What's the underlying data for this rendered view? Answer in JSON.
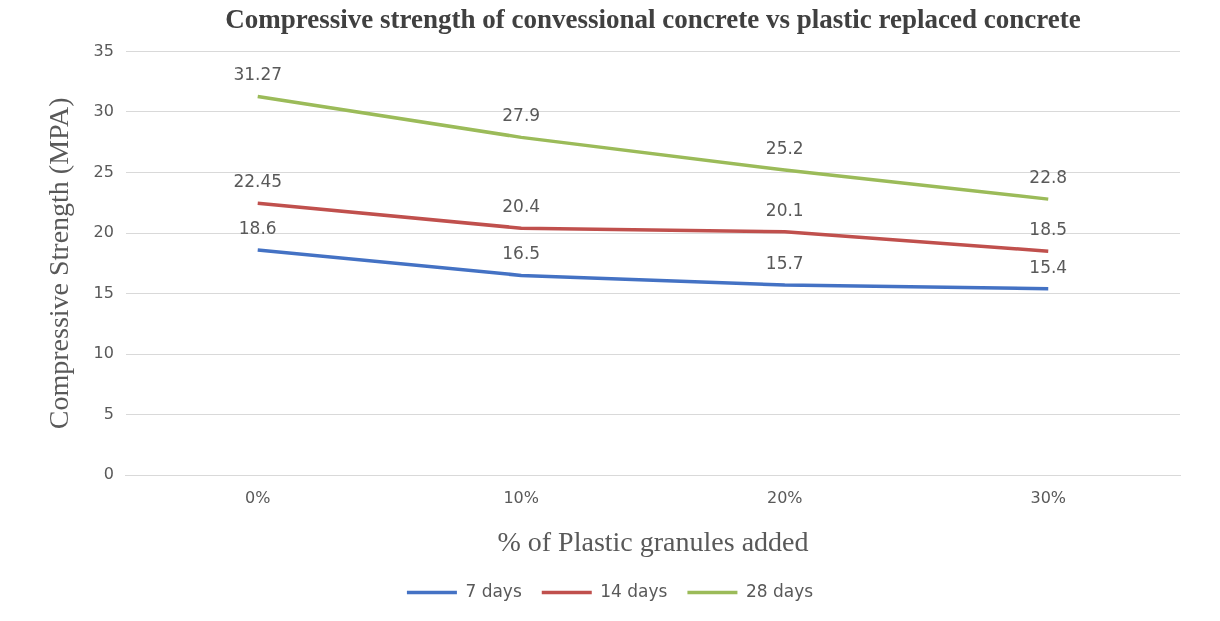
{
  "chart_data": {
    "type": "line",
    "title": "Compressive strength of convessional concrete vs plastic replaced concrete",
    "xlabel": "% of Plastic granules added",
    "ylabel": "Compressive Strength (MPA)",
    "categories": [
      "0%",
      "10%",
      "20%",
      "30%"
    ],
    "series": [
      {
        "name": "7 days",
        "color": "#4472c4",
        "values": [
          18.6,
          16.5,
          15.7,
          15.4
        ]
      },
      {
        "name": "14 days",
        "color": "#c0504d",
        "values": [
          22.45,
          20.4,
          20.1,
          18.5
        ]
      },
      {
        "name": "28 days",
        "color": "#9bbb59",
        "values": [
          31.27,
          27.9,
          25.2,
          22.8
        ]
      }
    ],
    "ylim": [
      0,
      35
    ],
    "yticks": [
      0,
      5,
      10,
      15,
      20,
      25,
      30,
      35
    ],
    "grid": "y",
    "legend": "bottom",
    "marker": "none",
    "line_style": "solid",
    "data_labels": true
  }
}
